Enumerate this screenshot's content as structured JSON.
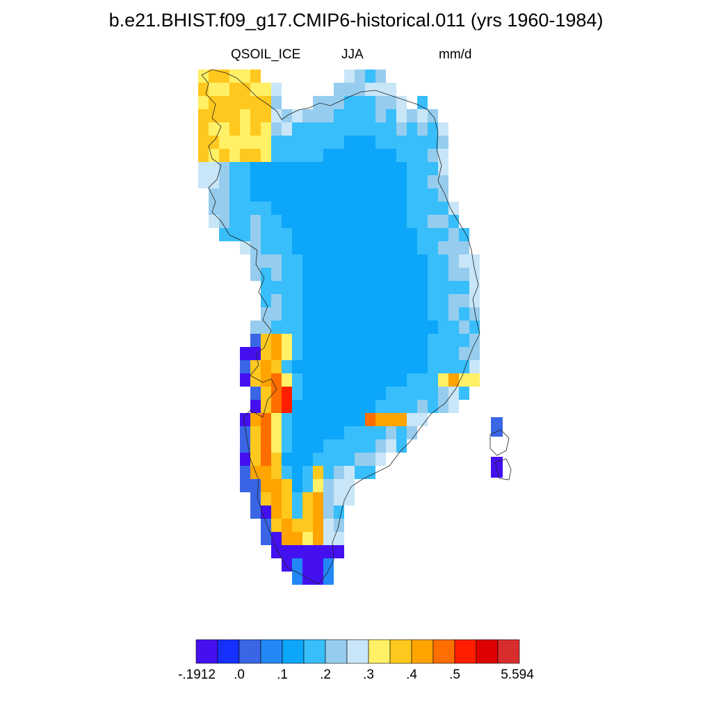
{
  "title": "b.e21.BHIST.f09_g17.CMIP6-historical.011 (yrs 1960-1984)",
  "variable": "QSOIL_ICE",
  "season": "JJA",
  "units": "mm/d",
  "colorbar": {
    "colors": [
      "#4410f0",
      "#1530ff",
      "#3a66e6",
      "#2288f5",
      "#0ca6fa",
      "#38befa",
      "#96cdee",
      "#c8e6f8",
      "#fff066",
      "#ffc81e",
      "#ffa400",
      "#ff6e00",
      "#ff1e00",
      "#dc0000",
      "#d72d2d"
    ],
    "labels": [
      "-.1912",
      ".0",
      ".1",
      ".2",
      ".3",
      ".4",
      ".5",
      "5.594"
    ]
  }
}
